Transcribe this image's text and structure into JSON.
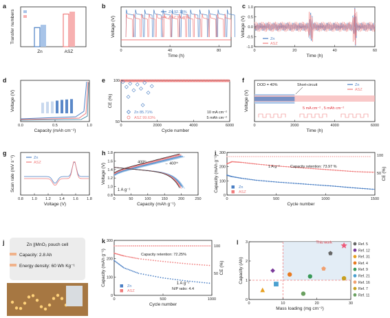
{
  "colors": {
    "zn": "#4a7fc4",
    "asz": "#f07a7a",
    "zn_light": "#a8c4e8",
    "asz_light": "#f7b0b0",
    "axis": "#222222",
    "red": "#e0303a",
    "gray": "#999999"
  },
  "chart_data": [
    {
      "id": "a",
      "label": "a",
      "type": "bar",
      "categories": [
        "Zn",
        "ASZ"
      ],
      "series": [
        {
          "values": [
            0.48,
            0.82
          ]
        },
        {
          "values": [
            0.55,
            0.88
          ]
        }
      ],
      "ylabel": "Transfer numbers",
      "xlabel": "",
      "ylim": [
        0,
        1
      ]
    },
    {
      "id": "b",
      "label": "b",
      "type": "line",
      "xlabel": "Time (h)",
      "ylabel": "Voltage (V)",
      "xlim": [
        0,
        90
      ],
      "xticks": [
        "0",
        "40",
        "80"
      ],
      "legend": [
        {
          "name": "Zn",
          "value": "92.13%"
        },
        {
          "name": "ASZ",
          "value": "99.46%"
        }
      ],
      "series": [
        {
          "name": "Zn",
          "cycle_start": 4,
          "period": 7.5
        },
        {
          "name": "ASZ",
          "cycle_start": 4,
          "period": 6.2
        }
      ]
    },
    {
      "id": "c",
      "label": "c",
      "type": "line",
      "xlabel": "Time (h)",
      "ylabel": "Voltage (V)",
      "xlim": [
        0,
        60
      ],
      "ylim": [
        -1.0,
        1.0
      ],
      "xticks": [
        "0",
        "20",
        "40",
        "60"
      ],
      "yticks": [
        "-1.0",
        "-0.5",
        "0.0",
        "0.5",
        "1.0"
      ],
      "legend": [
        "Zn",
        "ASZ"
      ],
      "series": [
        {
          "name": "Zn",
          "spikes": [
            {
              "x": 28,
              "y": 0.7
            },
            {
              "x": 50,
              "y": 0.95
            }
          ]
        },
        {
          "name": "ASZ",
          "spikes": [
            {
              "x": 28,
              "y": 0.6
            },
            {
              "x": 50,
              "y": 0.9
            }
          ]
        }
      ]
    },
    {
      "id": "d",
      "label": "d",
      "type": "line",
      "xlabel": "Capacity (mAh cm⁻²)",
      "ylabel": "Voltage (V)",
      "xlim": [
        0,
        1.0
      ],
      "xticks": [
        "0.0",
        "0.5",
        "1.0"
      ],
      "inset_bars": [
        0.55,
        0.6,
        0.62,
        0.66,
        0.7,
        0.72,
        0.74
      ]
    },
    {
      "id": "e",
      "label": "e",
      "type": "scatter",
      "xlabel": "Cycle number",
      "ylabel": "CE (%)",
      "xlim": [
        0,
        6000
      ],
      "ylim": [
        50,
        100
      ],
      "xticks": [
        "0",
        "2000",
        "4000",
        "6000"
      ],
      "yticks": [
        "50",
        "100"
      ],
      "legend": [
        {
          "name": "Zn",
          "value": "85.71%"
        },
        {
          "name": "ASZ",
          "value": "99.63%"
        }
      ],
      "annotations": [
        "10 mA cm⁻²",
        "5 mAh cm⁻²"
      ]
    },
    {
      "id": "f",
      "label": "f",
      "type": "line",
      "xlabel": "Time (h)",
      "ylabel": "Voltage (V)",
      "xlim": [
        0,
        6000
      ],
      "xticks": [
        "0",
        "2000",
        "4000",
        "6000"
      ],
      "legend": [
        "Zn",
        "ASZ"
      ],
      "annotations": [
        "DOD = 40%",
        "Short-circuit",
        "5 mA cm⁻²",
        "5 mAh cm⁻²"
      ]
    },
    {
      "id": "g",
      "label": "g",
      "type": "line",
      "xlabel": "Voltage (V)",
      "ylabel": "Scan rate (mV s⁻¹)",
      "xlim": [
        0.8,
        1.8
      ],
      "xticks": [
        "0.8",
        "1.0",
        "1.2",
        "1.4",
        "1.6",
        "1.8"
      ],
      "legend": [
        "Zn",
        "ASZ"
      ]
    },
    {
      "id": "h",
      "label": "h",
      "type": "line",
      "xlabel": "Capacity (mAh g⁻¹)",
      "ylabel": "Voltage (V)",
      "xlim": [
        0,
        250
      ],
      "ylim": [
        0.8,
        1.8
      ],
      "xticks": [
        "0",
        "50",
        "100",
        "150",
        "200",
        "250"
      ],
      "yticks": [
        "0.8",
        "1.0",
        "1.2",
        "1.4",
        "1.6",
        "1.8"
      ],
      "annotations": [
        "400ᵗʰ",
        "400ᵗʰ",
        "1 A g⁻¹"
      ],
      "discharge_end": 210
    },
    {
      "id": "i",
      "label": "i",
      "type": "scatter",
      "xlabel": "Cycle number",
      "ylabel": "Capacity (mAh g⁻¹)",
      "y2label": "CE (%)",
      "xlim": [
        0,
        1500
      ],
      "ylim": [
        0,
        300
      ],
      "xticks": [
        "0",
        "500",
        "1000",
        "1500"
      ],
      "yticks": [
        "0",
        "100",
        "200",
        "300"
      ],
      "y2ticks": [
        "50",
        "100"
      ],
      "legend": [
        "Zn",
        "ASZ"
      ],
      "annotations": [
        "1 A g⁻¹",
        "Capacity retention: 73.97 %"
      ],
      "series": [
        {
          "name": "ASZ",
          "x": [
            0,
            50,
            150,
            300,
            500,
            700,
            900,
            1100,
            1300,
            1500
          ],
          "y": [
            220,
            235,
            230,
            218,
            205,
            195,
            185,
            175,
            165,
            160
          ]
        },
        {
          "name": "Zn",
          "x": [
            0,
            50,
            150,
            300,
            500,
            700,
            900,
            1100,
            1300,
            1500
          ],
          "y": [
            140,
            130,
            118,
            104,
            92,
            82,
            72,
            62,
            50,
            40
          ]
        }
      ]
    },
    {
      "id": "j",
      "label": "j",
      "type": "table",
      "title": "Zn ||MnO₂ pouch cell",
      "lines": [
        "Capacity: 2.8 Ah",
        "Energy density: 60 Wh Kg⁻¹"
      ]
    },
    {
      "id": "k",
      "label": "k",
      "type": "scatter",
      "xlabel": "Cycle number",
      "ylabel": "Capacity (mAh g⁻¹)",
      "y2label": "CE (%)",
      "xlim": [
        0,
        1000
      ],
      "ylim": [
        0,
        300
      ],
      "xticks": [
        "0",
        "500",
        "1000"
      ],
      "yticks": [
        "0",
        "100",
        "200",
        "300"
      ],
      "y2ticks": [
        "50",
        "100"
      ],
      "legend": [
        "Zn",
        "ASZ"
      ],
      "annotations": [
        "Capacity retention: 72.25%",
        "1 A g⁻¹",
        "N/P ratio: 4.4"
      ],
      "series": [
        {
          "name": "ASZ",
          "x": [
            0,
            100,
            250,
            500,
            750,
            1000
          ],
          "y": [
            230,
            215,
            200,
            185,
            172,
            162
          ]
        },
        {
          "name": "Zn",
          "x": [
            0,
            100,
            250,
            500,
            750,
            1000
          ],
          "y": [
            190,
            150,
            120,
            95,
            78,
            65
          ]
        }
      ]
    },
    {
      "id": "l",
      "label": "l",
      "type": "scatter",
      "xlabel": "Mass loading (mg cm⁻²)",
      "ylabel": "Capacity (Ah)",
      "xlim": [
        0,
        30
      ],
      "ylim": [
        0,
        3
      ],
      "xticks": [
        "0",
        "10",
        "20",
        "30"
      ],
      "yticks": [
        "0",
        "1",
        "2",
        "3"
      ],
      "highlight": "This work",
      "points": [
        {
          "name": "Ref. 5",
          "x": 24,
          "y": 2.4,
          "color": "#666666",
          "shape": "pentagon"
        },
        {
          "name": "Ref. 12",
          "x": 7,
          "y": 1.5,
          "color": "#7a3a9a",
          "shape": "diamond"
        },
        {
          "name": "Ref. 31",
          "x": 4,
          "y": 0.5,
          "color": "#e8a020",
          "shape": "triangle"
        },
        {
          "name": "Ref. 4",
          "x": 12,
          "y": 1.3,
          "color": "#e87a20",
          "shape": "circle"
        },
        {
          "name": "Ref. 9",
          "x": 18,
          "y": 1.2,
          "color": "#3a9a5a",
          "shape": "circle"
        },
        {
          "name": "Ref. 21",
          "x": 8,
          "y": 0.8,
          "color": "#4aa0d0",
          "shape": "square"
        },
        {
          "name": "Ref. 16",
          "x": 22,
          "y": 1.6,
          "color": "#f0a070",
          "shape": "pentagon"
        },
        {
          "name": "Ref. 7",
          "x": 28,
          "y": 1.1,
          "color": "#c8a020",
          "shape": "heart"
        },
        {
          "name": "Ref. 11",
          "x": 16,
          "y": 0.3,
          "color": "#6aa060",
          "shape": "circle"
        },
        {
          "name": "This work",
          "x": 28,
          "y": 2.8,
          "color": "#ee5a7a",
          "shape": "star"
        }
      ]
    }
  ]
}
